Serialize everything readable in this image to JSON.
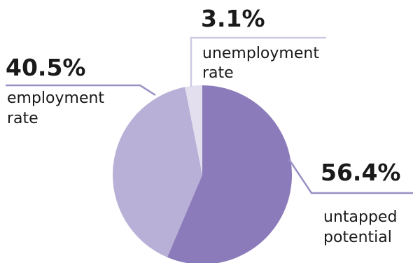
{
  "chart_data": {
    "type": "pie",
    "slices": [
      {
        "value": 56.4,
        "percent_label": "56.4%",
        "label_lines": [
          "untapped",
          "potential"
        ],
        "color": "#8c7bba"
      },
      {
        "value": 40.5,
        "percent_label": "40.5%",
        "label_lines": [
          "employment",
          "rate"
        ],
        "color": "#b9b0d8"
      },
      {
        "value": 3.1,
        "percent_label": "3.1%",
        "label_lines": [
          "unemployment",
          "rate"
        ],
        "color": "#e3dfee"
      }
    ],
    "leader_color": "#9a8fc4"
  }
}
